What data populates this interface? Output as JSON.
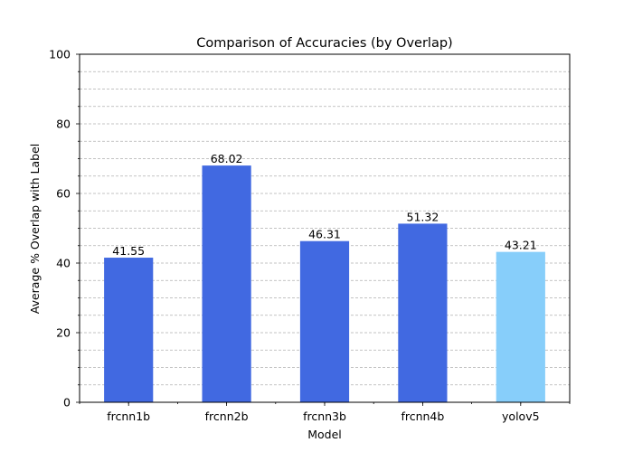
{
  "chart_data": {
    "type": "bar",
    "title": "Comparison of Accuracies (by Overlap)",
    "xlabel": "Model",
    "ylabel": "Average % Overlap with Label",
    "categories": [
      "frcnn1b",
      "frcnn2b",
      "frcnn3b",
      "frcnn4b",
      "yolov5"
    ],
    "values": [
      41.55,
      68.02,
      46.31,
      51.32,
      43.21
    ],
    "data_labels": [
      "41.55",
      "68.02",
      "46.31",
      "51.32",
      "43.21"
    ],
    "bar_colors": [
      "#4169E1",
      "#4169E1",
      "#4169E1",
      "#4169E1",
      "#87CEFA"
    ],
    "ylim": [
      0,
      100
    ],
    "yticks": [
      0,
      20,
      40,
      60,
      80,
      100
    ],
    "ytick_labels": [
      "0",
      "20",
      "40",
      "60",
      "80",
      "100"
    ],
    "minor_ytick_step": 5,
    "grid": "horizontal dashed (major and minor)",
    "grid_color": "#b0b0b0",
    "axis_color": "#000000"
  }
}
